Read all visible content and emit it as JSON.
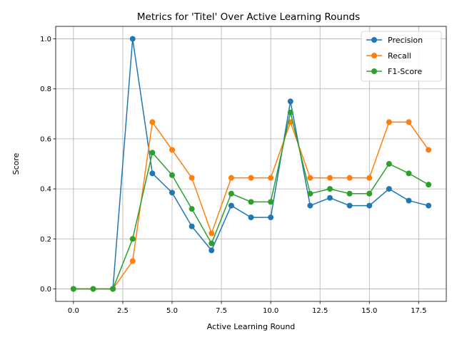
{
  "chart_data": {
    "type": "line",
    "title": "Metrics for 'Titel' Over Active Learning Rounds",
    "xlabel": "Active Learning Round",
    "ylabel": "Score",
    "x": [
      0,
      1,
      2,
      3,
      4,
      5,
      6,
      7,
      8,
      9,
      10,
      11,
      12,
      13,
      14,
      15,
      16,
      17,
      18
    ],
    "xlim": [
      -0.9,
      18.9
    ],
    "ylim": [
      -0.05,
      1.05
    ],
    "xticks": [
      0.0,
      2.5,
      5.0,
      7.5,
      10.0,
      12.5,
      15.0,
      17.5
    ],
    "xtick_labels": [
      "0.0",
      "2.5",
      "5.0",
      "7.5",
      "10.0",
      "12.5",
      "15.0",
      "17.5"
    ],
    "yticks": [
      0.0,
      0.2,
      0.4,
      0.6,
      0.8,
      1.0
    ],
    "ytick_labels": [
      "0.0",
      "0.2",
      "0.4",
      "0.6",
      "0.8",
      "1.0"
    ],
    "grid": true,
    "legend_position": "top-right",
    "series": [
      {
        "name": "Precision",
        "color": "#1f77b4",
        "values": [
          0.0,
          0.0,
          0.0,
          1.0,
          0.462,
          0.385,
          0.25,
          0.154,
          0.333,
          0.286,
          0.286,
          0.75,
          0.333,
          0.364,
          0.333,
          0.333,
          0.4,
          0.353,
          0.333
        ]
      },
      {
        "name": "Recall",
        "color": "#ff7f0e",
        "values": [
          0.0,
          0.0,
          0.0,
          0.111,
          0.667,
          0.556,
          0.444,
          0.222,
          0.444,
          0.444,
          0.444,
          0.667,
          0.444,
          0.444,
          0.444,
          0.444,
          0.667,
          0.667,
          0.556
        ]
      },
      {
        "name": "F1-Score",
        "color": "#2ca02c",
        "values": [
          0.0,
          0.0,
          0.0,
          0.2,
          0.545,
          0.455,
          0.32,
          0.182,
          0.381,
          0.348,
          0.348,
          0.706,
          0.381,
          0.4,
          0.381,
          0.381,
          0.5,
          0.462,
          0.417
        ]
      }
    ]
  }
}
